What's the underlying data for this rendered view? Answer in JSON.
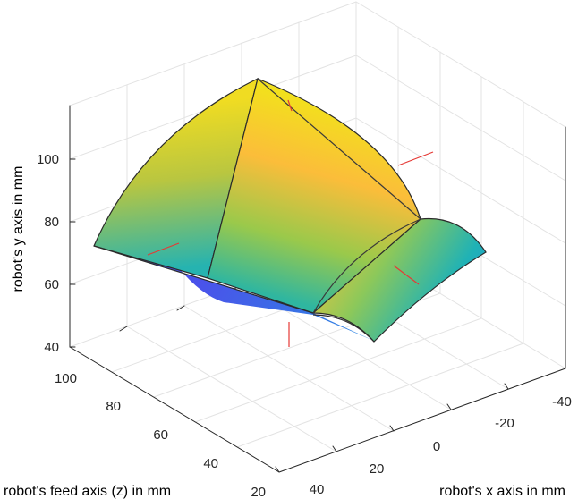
{
  "chart_data": {
    "type": "surface3d",
    "title": "",
    "xlabel": "robot's x axis in mm",
    "ylabel": "robot's y axis in mm",
    "zlabel": "robot's feed axis (z) in mm",
    "x_ticks": [
      "-40",
      "-20",
      "0",
      "20",
      "40"
    ],
    "y_ticks": [
      "40",
      "60",
      "80",
      "100"
    ],
    "z_ticks": [
      "20",
      "40",
      "60",
      "80",
      "100"
    ],
    "grid": true,
    "colormap": "parula",
    "surface_corners": [
      {
        "x": 40,
        "y": 70,
        "z": 90
      },
      {
        "x": -10,
        "y": 112,
        "z": 100
      },
      {
        "x": -40,
        "y": 68,
        "z": 40
      },
      {
        "x": 25,
        "y": 45,
        "z": 20
      }
    ],
    "centre_marks": 4
  }
}
